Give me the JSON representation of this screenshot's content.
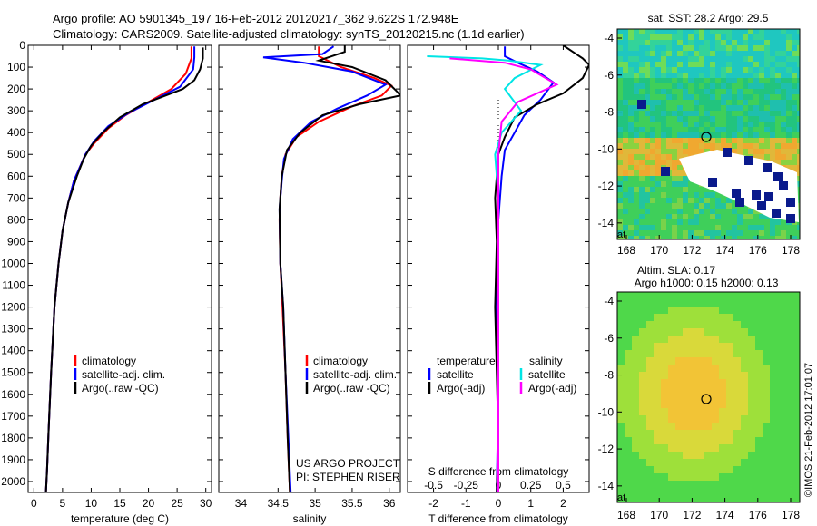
{
  "header": {
    "line1": "Argo profile: AO 5901345_197 16-Feb-2012 20120217_362 9.622S 172.948E",
    "line2": "Climatology: CARS2009. Satellite-adjusted climatology: synTS_20120215.nc (1.1d earlier)"
  },
  "colors": {
    "climatology": "#ff0000",
    "satellite": "#0000ff",
    "argo": "#000000",
    "sal_satellite": "#00e5e5",
    "sal_argo": "#ff00ff"
  },
  "legend_temp": {
    "items": [
      "climatology",
      "satellite-adj. clim.",
      "Argo(..raw -QC)"
    ]
  },
  "legend_sal": {
    "items": [
      "climatology",
      "satellite-adj. clim.",
      "Argo(..raw -QC)"
    ]
  },
  "legend_diff": {
    "temp_header": "temperature",
    "sal_header": "salinity",
    "temp_items": [
      "satellite",
      "Argo(-adj)"
    ],
    "sal_items": [
      "satellite",
      "Argo(-adj)"
    ]
  },
  "project": {
    "line1": "US ARGO PROJECT",
    "line2": "PI: STEPHEN RISER"
  },
  "credit": "©IMOS 21-Feb-2012 17:01:07",
  "maps": {
    "sst_title": "sat. SST: 28.2 Argo: 29.5",
    "sla_title1": "Altim. SLA: 0.17",
    "sla_title2": "Argo h1000: 0.15 h2000: 0.13",
    "lon_ticks": [
      "168",
      "170",
      "172",
      "174",
      "176",
      "178"
    ],
    "lat_ticks": [
      "-4",
      "-6",
      "-8",
      "-10",
      "-12",
      "-14"
    ],
    "corner_label": "at"
  },
  "chart_data": [
    {
      "type": "line",
      "xlabel": "temperature (deg C)",
      "ylim": [
        2050,
        0
      ],
      "xlim": [
        -1,
        31
      ],
      "xticks": [
        0,
        5,
        10,
        15,
        20,
        25,
        30
      ],
      "yticks": [
        0,
        100,
        200,
        300,
        400,
        500,
        600,
        700,
        800,
        900,
        1000,
        1100,
        1200,
        1300,
        1400,
        1500,
        1600,
        1700,
        1800,
        1900,
        2000
      ],
      "series": [
        {
          "name": "climatology",
          "color": "#ff0000",
          "points": [
            [
              27.5,
              5
            ],
            [
              27.5,
              60
            ],
            [
              26.5,
              130
            ],
            [
              24,
              200
            ],
            [
              20,
              260
            ],
            [
              16,
              320
            ],
            [
              13,
              380
            ],
            [
              10.5,
              450
            ],
            [
              9,
              500
            ],
            [
              8,
              560
            ],
            [
              7,
              620
            ],
            [
              6,
              720
            ],
            [
              5,
              850
            ],
            [
              4.3,
              1000
            ],
            [
              3.6,
              1200
            ],
            [
              3,
              1500
            ],
            [
              2.6,
              1750
            ],
            [
              2.3,
              1950
            ],
            [
              2.1,
              2050
            ]
          ]
        },
        {
          "name": "satellite-adj. clim.",
          "color": "#0000ff",
          "points": [
            [
              28,
              5
            ],
            [
              28,
              55
            ],
            [
              27.8,
              110
            ],
            [
              25.5,
              190
            ],
            [
              21,
              250
            ],
            [
              16.5,
              310
            ],
            [
              13,
              370
            ],
            [
              10.5,
              440
            ],
            [
              9,
              500
            ],
            [
              8,
              560
            ],
            [
              7,
              620
            ],
            [
              6,
              720
            ],
            [
              5,
              850
            ],
            [
              4.3,
              1000
            ],
            [
              3.6,
              1200
            ],
            [
              3,
              1500
            ],
            [
              2.6,
              1750
            ],
            [
              2.3,
              1950
            ],
            [
              2.1,
              2050
            ]
          ]
        },
        {
          "name": "Argo(..raw -QC)",
          "color": "#000000",
          "points": [
            [
              29.5,
              10
            ],
            [
              29.5,
              60
            ],
            [
              29,
              110
            ],
            [
              28,
              160
            ],
            [
              26,
              200
            ],
            [
              23,
              230
            ],
            [
              19,
              270
            ],
            [
              15,
              330
            ],
            [
              12,
              400
            ],
            [
              10,
              460
            ],
            [
              8.7,
              520
            ],
            [
              7.5,
              600
            ],
            [
              6,
              720
            ],
            [
              5,
              850
            ],
            [
              4.3,
              1000
            ],
            [
              3.6,
              1200
            ],
            [
              3,
              1500
            ],
            [
              2.6,
              1750
            ],
            [
              2.3,
              1950
            ],
            [
              2.1,
              2050
            ]
          ]
        }
      ]
    },
    {
      "type": "line",
      "xlabel": "salinity",
      "ylim": [
        2050,
        0
      ],
      "xlim": [
        33.7,
        36.15
      ],
      "xticks": [
        34,
        34.5,
        35,
        35.5,
        36
      ],
      "series": [
        {
          "name": "climatology",
          "color": "#ff0000",
          "points": [
            [
              35.05,
              5
            ],
            [
              35.05,
              50
            ],
            [
              35.35,
              100
            ],
            [
              35.8,
              150
            ],
            [
              36.03,
              185
            ],
            [
              35.9,
              230
            ],
            [
              35.5,
              280
            ],
            [
              35.05,
              350
            ],
            [
              34.75,
              420
            ],
            [
              34.6,
              500
            ],
            [
              34.55,
              600
            ],
            [
              34.53,
              700
            ],
            [
              34.52,
              800
            ],
            [
              34.53,
              1000
            ],
            [
              34.56,
              1200
            ],
            [
              34.6,
              1500
            ],
            [
              34.63,
              1800
            ],
            [
              34.66,
              2050
            ]
          ]
        },
        {
          "name": "satellite-adj. clim.",
          "color": "#0000ff",
          "points": [
            [
              35.25,
              5
            ],
            [
              35.1,
              40
            ],
            [
              34.3,
              55
            ],
            [
              34.85,
              80
            ],
            [
              35.5,
              120
            ],
            [
              35.95,
              180
            ],
            [
              35.7,
              230
            ],
            [
              35.3,
              290
            ],
            [
              34.95,
              350
            ],
            [
              34.7,
              430
            ],
            [
              34.58,
              520
            ],
            [
              34.55,
              620
            ],
            [
              34.52,
              750
            ],
            [
              34.53,
              1000
            ],
            [
              34.57,
              1200
            ],
            [
              34.6,
              1500
            ],
            [
              34.64,
              1800
            ],
            [
              34.67,
              2050
            ]
          ]
        },
        {
          "name": "Argo(..raw -QC)",
          "color": "#000000",
          "points": [
            [
              35.4,
              0
            ],
            [
              35.4,
              30
            ],
            [
              35.05,
              70
            ],
            [
              35.5,
              100
            ],
            [
              35.95,
              160
            ],
            [
              36.1,
              210
            ],
            [
              36.15,
              230
            ],
            [
              35.6,
              270
            ],
            [
              35.1,
              320
            ],
            [
              34.8,
              400
            ],
            [
              34.62,
              480
            ],
            [
              34.55,
              600
            ],
            [
              34.52,
              750
            ],
            [
              34.53,
              1000
            ],
            [
              34.57,
              1200
            ],
            [
              34.6,
              1500
            ],
            [
              34.63,
              1800
            ],
            [
              34.66,
              2050
            ]
          ]
        }
      ]
    },
    {
      "type": "line",
      "xlabel": "T difference from climatology",
      "xlabel_top": "S difference from climatology",
      "ylim": [
        2050,
        0
      ],
      "xlim": [
        -2.8,
        2.8
      ],
      "xticks_bottom": [
        -2,
        -1,
        0,
        1,
        2
      ],
      "xticks_top_labels": [
        "-0.5",
        "-0.25",
        "0",
        "0.25",
        "0.5"
      ],
      "series": [
        {
          "name": "temperature satellite",
          "color": "#0000ff",
          "points": [
            [
              0.2,
              5
            ],
            [
              0.2,
              50
            ],
            [
              0.6,
              80
            ],
            [
              1.2,
              120
            ],
            [
              1.7,
              170
            ],
            [
              1.3,
              250
            ],
            [
              0.8,
              320
            ],
            [
              0.5,
              400
            ],
            [
              0.2,
              480
            ],
            [
              0.1,
              600
            ],
            [
              0,
              800
            ],
            [
              -0.05,
              1200
            ],
            [
              0,
              1600
            ],
            [
              -0.05,
              2050
            ]
          ]
        },
        {
          "name": "temperature Argo(-adj)",
          "color": "#000000",
          "points": [
            [
              2,
              0
            ],
            [
              2.3,
              30
            ],
            [
              2.6,
              60
            ],
            [
              2.8,
              90
            ],
            [
              2.6,
              150
            ],
            [
              2,
              220
            ],
            [
              1.2,
              270
            ],
            [
              0.5,
              330
            ],
            [
              0.2,
              420
            ],
            [
              0,
              500
            ],
            [
              -0.1,
              700
            ],
            [
              -0.05,
              900
            ],
            [
              -0.1,
              1200
            ],
            [
              -0.05,
              1500
            ],
            [
              0,
              1800
            ],
            [
              -0.05,
              2050
            ]
          ]
        },
        {
          "name": "salinity satellite",
          "color": "#00e5e5",
          "points": [
            [
              -2.2,
              50
            ],
            [
              -0.5,
              60
            ],
            [
              0.3,
              70
            ],
            [
              1.3,
              90
            ],
            [
              0.5,
              150
            ],
            [
              0.2,
              200
            ],
            [
              0.7,
              300
            ],
            [
              0.1,
              400
            ],
            [
              -0.1,
              500
            ],
            [
              0,
              700
            ],
            [
              0,
              1200
            ],
            [
              0,
              1600
            ],
            [
              0,
              2050
            ]
          ]
        },
        {
          "name": "salinity Argo(-adj)",
          "color": "#ff00ff",
          "points": [
            [
              -1.5,
              60
            ],
            [
              0.2,
              80
            ],
            [
              1,
              110
            ],
            [
              1.8,
              180
            ],
            [
              0.6,
              260
            ],
            [
              0.1,
              350
            ],
            [
              0,
              500
            ],
            [
              0,
              800
            ],
            [
              0,
              1500
            ],
            [
              0,
              2050
            ]
          ]
        }
      ]
    }
  ]
}
